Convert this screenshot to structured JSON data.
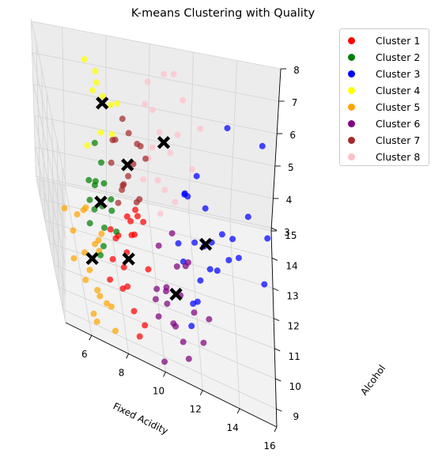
{
  "chart_data": {
    "type": "scatter",
    "projection": "3d",
    "title": "K-means Clustering with Quality",
    "xlabel": "Fixed Acidity",
    "ylabel": "Alcohol",
    "zlabel": "",
    "xlim": [
      4.6,
      16.0
    ],
    "ylim": [
      8.4,
      14.9
    ],
    "zlim": [
      3,
      8
    ],
    "xticks": [
      6,
      8,
      10,
      12,
      14,
      16
    ],
    "yticks": [
      9,
      10,
      11,
      12,
      13,
      14,
      15
    ],
    "zticks": [
      3,
      4,
      5,
      6,
      7,
      8
    ],
    "grid": true,
    "legend_position": "top-right",
    "series": [
      {
        "name": "Cluster 1",
        "color": "#ff0000",
        "points": [
          [
            8.2,
            10.2,
            5.0
          ],
          [
            7.9,
            9.6,
            4.2
          ],
          [
            8.5,
            10.5,
            5.4
          ],
          [
            7.4,
            9.8,
            4.9
          ],
          [
            8.9,
            11.1,
            5.6
          ],
          [
            8.1,
            9.4,
            4.5
          ],
          [
            8.7,
            10.8,
            5.2
          ],
          [
            7.6,
            10.0,
            5.5
          ],
          [
            9.0,
            9.2,
            3.6
          ],
          [
            8.3,
            10.7,
            5.8
          ],
          [
            7.2,
            9.5,
            4.4
          ],
          [
            8.6,
            11.4,
            5.1
          ],
          [
            9.3,
            10.1,
            4.8
          ],
          [
            7.8,
            10.4,
            5.3
          ],
          [
            8.4,
            9.1,
            4.0
          ],
          [
            8.8,
            11.2,
            5.7
          ],
          [
            7.5,
            10.9,
            5.0
          ],
          [
            9.1,
            10.6,
            5.9
          ],
          [
            8.0,
            9.9,
            4.7
          ],
          [
            8.7,
            9.0,
            3.3
          ]
        ]
      },
      {
        "name": "Cluster 2",
        "color": "#008000",
        "points": [
          [
            6.6,
            10.5,
            5.8
          ],
          [
            7.1,
            11.0,
            5.6
          ],
          [
            6.9,
            9.7,
            5.3
          ],
          [
            7.5,
            10.8,
            6.1
          ],
          [
            6.3,
            10.2,
            5.5
          ],
          [
            7.3,
            11.6,
            5.9
          ],
          [
            6.8,
            11.2,
            6.2
          ],
          [
            7.0,
            10.0,
            5.7
          ],
          [
            6.5,
            11.4,
            6.0
          ],
          [
            7.7,
            10.4,
            5.4
          ],
          [
            6.7,
            9.5,
            5.1
          ],
          [
            7.2,
            11.8,
            6.4
          ],
          [
            6.4,
            10.7,
            5.9
          ],
          [
            7.4,
            10.1,
            6.3
          ],
          [
            6.9,
            11.9,
            5.5
          ],
          [
            7.0,
            12.4,
            6.5
          ]
        ]
      },
      {
        "name": "Cluster 3",
        "color": "#0000ff",
        "points": [
          [
            11.8,
            11.2,
            5.3
          ],
          [
            12.4,
            12.0,
            5.8
          ],
          [
            11.2,
            10.8,
            4.9
          ],
          [
            12.9,
            10.6,
            5.2
          ],
          [
            11.5,
            11.9,
            6.1
          ],
          [
            12.1,
            10.9,
            4.4
          ],
          [
            13.2,
            11.5,
            5.6
          ],
          [
            11.0,
            11.3,
            5.0
          ],
          [
            12.6,
            11.1,
            4.7
          ],
          [
            11.7,
            10.5,
            3.9
          ],
          [
            12.0,
            12.5,
            6.3
          ],
          [
            13.5,
            10.9,
            5.4
          ],
          [
            11.4,
            12.2,
            5.9
          ],
          [
            12.8,
            12.3,
            4.5
          ],
          [
            11.9,
            10.3,
            4.2
          ],
          [
            13.8,
            12.1,
            5.0
          ],
          [
            11.3,
            11.6,
            6.4
          ],
          [
            12.3,
            11.4,
            5.1
          ],
          [
            14.6,
            12.8,
            5.2
          ],
          [
            15.6,
            12.9,
            4.6
          ],
          [
            14.2,
            12.6,
            4.0
          ],
          [
            13.6,
            14.2,
            6.5
          ],
          [
            15.3,
            14.4,
            6.0
          ],
          [
            15.5,
            12.4,
            3.6
          ],
          [
            11.6,
            10.2,
            3.4
          ]
        ]
      },
      {
        "name": "Cluster 4",
        "color": "#ffff00",
        "points": [
          [
            7.0,
            12.9,
            7.8
          ],
          [
            7.6,
            13.5,
            7.2
          ],
          [
            8.2,
            13.0,
            7.5
          ],
          [
            7.3,
            12.4,
            6.9
          ],
          [
            6.8,
            13.8,
            8.0
          ],
          [
            7.9,
            12.7,
            6.7
          ],
          [
            7.4,
            14.1,
            7.1
          ],
          [
            6.6,
            12.2,
            6.5
          ],
          [
            8.0,
            13.6,
            6.9
          ],
          [
            7.2,
            13.2,
            8.2
          ]
        ]
      },
      {
        "name": "Cluster 5",
        "color": "#ffa500",
        "points": [
          [
            6.2,
            9.8,
            4.2
          ],
          [
            6.8,
            10.3,
            4.6
          ],
          [
            5.8,
            10.9,
            5.1
          ],
          [
            6.5,
            9.3,
            4.0
          ],
          [
            7.0,
            10.7,
            4.9
          ],
          [
            6.0,
            10.1,
            4.5
          ],
          [
            6.7,
            9.6,
            3.6
          ],
          [
            5.5,
            10.5,
            4.8
          ],
          [
            6.3,
            11.2,
            5.2
          ],
          [
            7.2,
            9.1,
            3.8
          ],
          [
            5.9,
            9.4,
            4.1
          ],
          [
            6.9,
            11.0,
            4.4
          ],
          [
            6.1,
            10.8,
            5.4
          ],
          [
            5.4,
            9.9,
            4.3
          ],
          [
            7.1,
            9.8,
            3.3
          ],
          [
            6.4,
            8.9,
            3.2
          ],
          [
            5.2,
            11.1,
            5.0
          ],
          [
            6.6,
            10.4,
            4.7
          ],
          [
            6.2,
            8.8,
            3.5
          ],
          [
            7.4,
            9.0,
            3.1
          ]
        ]
      },
      {
        "name": "Cluster 6",
        "color": "#800080",
        "points": [
          [
            10.2,
            9.8,
            4.7
          ],
          [
            10.8,
            10.3,
            5.1
          ],
          [
            9.6,
            9.5,
            4.4
          ],
          [
            11.2,
            10.0,
            5.5
          ],
          [
            10.5,
            9.2,
            4.1
          ],
          [
            9.9,
            10.6,
            5.3
          ],
          [
            10.9,
            9.6,
            4.8
          ],
          [
            10.3,
            10.1,
            3.9
          ],
          [
            11.6,
            9.4,
            4.6
          ],
          [
            9.7,
            9.1,
            4.2
          ],
          [
            10.6,
            10.8,
            5.7
          ],
          [
            11.0,
            9.0,
            3.8
          ],
          [
            10.1,
            9.3,
            5.0
          ],
          [
            11.4,
            10.5,
            5.2
          ],
          [
            9.8,
            10.4,
            4.0
          ],
          [
            10.7,
            9.7,
            3.6
          ],
          [
            12.1,
            9.2,
            3.9
          ],
          [
            11.3,
            8.9,
            3.4
          ],
          [
            10.0,
            8.8,
            3.0
          ],
          [
            12.4,
            9.5,
            4.5
          ]
        ]
      },
      {
        "name": "Cluster 7",
        "color": "#a52a2a",
        "points": [
          [
            8.2,
            11.4,
            6.2
          ],
          [
            8.8,
            11.9,
            6.6
          ],
          [
            7.9,
            11.0,
            5.9
          ],
          [
            9.2,
            12.2,
            7.0
          ],
          [
            8.5,
            11.6,
            6.4
          ],
          [
            8.0,
            12.4,
            6.8
          ],
          [
            9.0,
            11.2,
            6.1
          ],
          [
            8.4,
            12.7,
            7.3
          ],
          [
            7.7,
            11.8,
            6.5
          ],
          [
            8.9,
            11.4,
            5.8
          ],
          [
            9.4,
            11.9,
            6.9
          ],
          [
            8.1,
            11.1,
            6.3
          ],
          [
            8.6,
            12.1,
            7.4
          ],
          [
            9.1,
            12.6,
            6.7
          ],
          [
            7.8,
            12.0,
            7.1
          ],
          [
            8.3,
            11.7,
            6.0
          ]
        ]
      },
      {
        "name": "Cluster 8",
        "color": "#ffc0cb",
        "points": [
          [
            9.6,
            12.3,
            6.6
          ],
          [
            10.2,
            12.8,
            7.1
          ],
          [
            9.3,
            11.9,
            6.2
          ],
          [
            10.7,
            12.5,
            6.8
          ],
          [
            9.9,
            13.1,
            7.5
          ],
          [
            10.4,
            12.1,
            5.9
          ],
          [
            11.1,
            13.0,
            7.0
          ],
          [
            9.5,
            12.9,
            7.8
          ],
          [
            10.0,
            11.8,
            6.4
          ],
          [
            10.9,
            12.0,
            5.7
          ],
          [
            11.4,
            13.6,
            7.6
          ],
          [
            9.7,
            13.4,
            8.1
          ],
          [
            10.5,
            13.7,
            8.2
          ],
          [
            11.8,
            12.7,
            6.3
          ],
          [
            10.1,
            11.5,
            5.6
          ],
          [
            11.0,
            14.0,
            8.0
          ],
          [
            9.8,
            12.4,
            6.9
          ],
          [
            12.2,
            13.2,
            7.2
          ]
        ]
      }
    ],
    "centroids": {
      "color": "#000000",
      "marker": "X",
      "points": [
        [
          8.3,
          10.2,
          4.8
        ],
        [
          7.0,
          10.9,
          5.8
        ],
        [
          12.4,
          11.5,
          5.1
        ],
        [
          7.5,
          13.1,
          7.3
        ],
        [
          6.4,
          10.1,
          4.4
        ],
        [
          10.7,
          9.8,
          4.6
        ],
        [
          8.5,
          11.8,
          6.6
        ],
        [
          10.4,
          12.7,
          6.9
        ]
      ]
    }
  }
}
